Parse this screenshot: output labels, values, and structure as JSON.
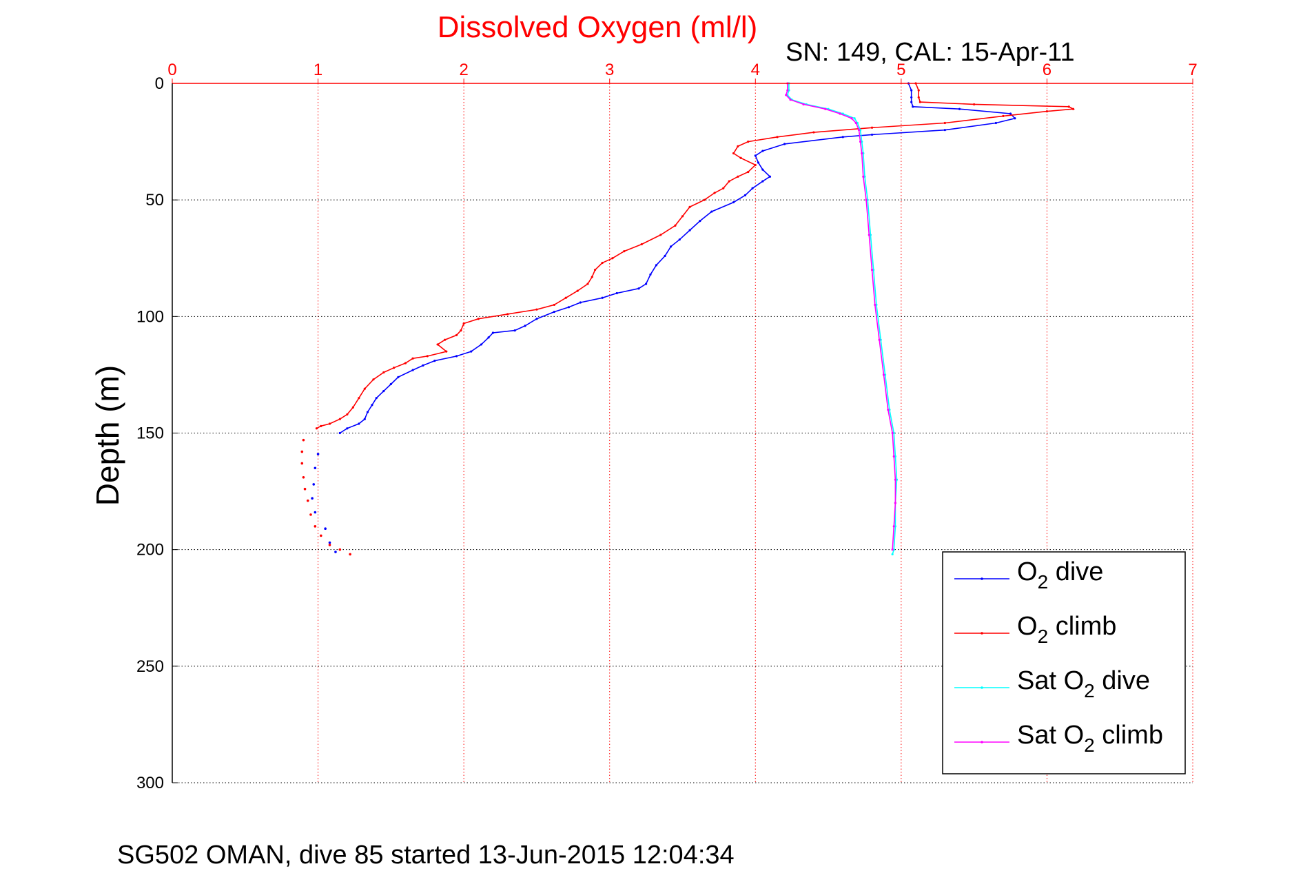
{
  "chart_data": {
    "type": "line",
    "title": "Dissolved Oxygen (ml/l)",
    "subtitle": "SN: 149, CAL: 15-Apr-11",
    "ylabel": "Depth (m)",
    "footer": "SG502 OMAN, dive 85 started 13-Jun-2015 12:04:34",
    "xlim": [
      0,
      7
    ],
    "ylim": [
      0,
      300
    ],
    "y_reversed": true,
    "x_axis_position": "top",
    "grid": true,
    "legend_position": "bottom-right",
    "xticks": [
      "0",
      "1",
      "2",
      "3",
      "4",
      "5",
      "6",
      "7"
    ],
    "yticks": [
      "0",
      "50",
      "100",
      "150",
      "200",
      "250",
      "300"
    ],
    "colors": {
      "title": "#ff0000",
      "x_ticks": "#ff0000",
      "x_grid": "#ff0000",
      "y_grid": "#000000",
      "axis": "#000000"
    },
    "series": [
      {
        "name": "O2 dive",
        "legend": {
          "prefix": "O",
          "sub": "2",
          "suffix": " dive"
        },
        "color": "#0000ff",
        "points": [
          [
            5.05,
            0
          ],
          [
            5.07,
            3
          ],
          [
            5.07,
            6
          ],
          [
            5.07,
            8
          ],
          [
            5.08,
            10
          ],
          [
            5.4,
            11
          ],
          [
            5.75,
            13
          ],
          [
            5.78,
            15
          ],
          [
            5.65,
            17
          ],
          [
            5.3,
            20
          ],
          [
            4.8,
            22
          ],
          [
            4.6,
            23
          ],
          [
            4.2,
            26
          ],
          [
            4.05,
            29
          ],
          [
            4.0,
            31
          ],
          [
            4.02,
            34
          ],
          [
            4.05,
            37
          ],
          [
            4.1,
            40
          ],
          [
            4.05,
            42
          ],
          [
            3.98,
            45
          ],
          [
            3.93,
            48
          ],
          [
            3.85,
            51
          ],
          [
            3.7,
            55
          ],
          [
            3.62,
            59
          ],
          [
            3.55,
            63
          ],
          [
            3.48,
            67
          ],
          [
            3.42,
            70
          ],
          [
            3.38,
            74
          ],
          [
            3.32,
            78
          ],
          [
            3.28,
            82
          ],
          [
            3.25,
            86
          ],
          [
            3.2,
            88
          ],
          [
            3.05,
            90
          ],
          [
            2.95,
            92
          ],
          [
            2.8,
            94
          ],
          [
            2.72,
            96
          ],
          [
            2.62,
            98
          ],
          [
            2.5,
            101
          ],
          [
            2.42,
            104
          ],
          [
            2.35,
            106
          ],
          [
            2.2,
            107
          ],
          [
            2.17,
            109
          ],
          [
            2.12,
            112
          ],
          [
            2.05,
            115
          ],
          [
            1.95,
            117
          ],
          [
            1.8,
            119
          ],
          [
            1.72,
            121
          ],
          [
            1.65,
            123
          ],
          [
            1.55,
            126
          ],
          [
            1.5,
            129
          ],
          [
            1.45,
            132
          ],
          [
            1.4,
            135
          ],
          [
            1.37,
            138
          ],
          [
            1.34,
            141
          ],
          [
            1.32,
            144
          ],
          [
            1.28,
            146
          ],
          [
            1.2,
            148
          ],
          [
            1.15,
            150
          ]
        ]
      },
      {
        "name": "O2 climb",
        "legend": {
          "prefix": "O",
          "sub": "2",
          "suffix": " climb"
        },
        "color": "#ff0000",
        "points": [
          [
            5.1,
            0
          ],
          [
            5.12,
            3
          ],
          [
            5.12,
            6
          ],
          [
            5.13,
            8
          ],
          [
            5.5,
            9
          ],
          [
            6.15,
            10
          ],
          [
            6.18,
            11
          ],
          [
            6.0,
            12
          ],
          [
            5.7,
            14
          ],
          [
            5.3,
            17
          ],
          [
            4.8,
            19
          ],
          [
            4.4,
            21
          ],
          [
            4.15,
            23
          ],
          [
            3.95,
            25
          ],
          [
            3.88,
            27
          ],
          [
            3.85,
            30
          ],
          [
            3.9,
            32
          ],
          [
            4.0,
            35
          ],
          [
            3.95,
            38
          ],
          [
            3.88,
            40
          ],
          [
            3.82,
            42
          ],
          [
            3.78,
            45
          ],
          [
            3.72,
            47
          ],
          [
            3.65,
            50
          ],
          [
            3.55,
            53
          ],
          [
            3.5,
            57
          ],
          [
            3.45,
            61
          ],
          [
            3.35,
            65
          ],
          [
            3.22,
            69
          ],
          [
            3.1,
            72
          ],
          [
            3.02,
            75
          ],
          [
            2.95,
            77
          ],
          [
            2.9,
            80
          ],
          [
            2.88,
            83
          ],
          [
            2.85,
            86
          ],
          [
            2.78,
            89
          ],
          [
            2.7,
            92
          ],
          [
            2.62,
            95
          ],
          [
            2.5,
            97
          ],
          [
            2.3,
            99
          ],
          [
            2.1,
            101
          ],
          [
            2.0,
            103
          ],
          [
            1.98,
            106
          ],
          [
            1.95,
            108
          ],
          [
            1.87,
            110
          ],
          [
            1.82,
            112
          ],
          [
            1.88,
            115
          ],
          [
            1.75,
            117
          ],
          [
            1.65,
            118
          ],
          [
            1.6,
            120
          ],
          [
            1.52,
            122
          ],
          [
            1.45,
            124
          ],
          [
            1.38,
            127
          ],
          [
            1.32,
            131
          ],
          [
            1.28,
            135
          ],
          [
            1.24,
            139
          ],
          [
            1.2,
            142
          ],
          [
            1.15,
            144
          ],
          [
            1.08,
            146
          ],
          [
            1.02,
            147
          ],
          [
            0.99,
            148
          ]
        ]
      },
      {
        "name": "Sat O2 dive",
        "legend": {
          "prefix": "Sat O",
          "sub": "2",
          "suffix": " dive"
        },
        "color": "#00ffff",
        "points": [
          [
            4.23,
            0
          ],
          [
            4.23,
            3
          ],
          [
            4.22,
            5
          ],
          [
            4.25,
            7
          ],
          [
            4.35,
            9
          ],
          [
            4.5,
            11
          ],
          [
            4.6,
            13
          ],
          [
            4.68,
            15
          ],
          [
            4.7,
            17
          ],
          [
            4.72,
            20
          ],
          [
            4.73,
            25
          ],
          [
            4.74,
            30
          ],
          [
            4.75,
            40
          ],
          [
            4.77,
            50
          ],
          [
            4.79,
            65
          ],
          [
            4.81,
            80
          ],
          [
            4.83,
            95
          ],
          [
            4.86,
            110
          ],
          [
            4.89,
            125
          ],
          [
            4.92,
            140
          ],
          [
            4.95,
            150
          ],
          [
            4.96,
            160
          ],
          [
            4.97,
            170
          ],
          [
            4.96,
            180
          ],
          [
            4.96,
            190
          ],
          [
            4.95,
            200
          ],
          [
            4.94,
            202
          ]
        ]
      },
      {
        "name": "Sat O2 climb",
        "legend": {
          "prefix": "Sat O",
          "sub": "2",
          "suffix": " climb"
        },
        "color": "#ff00ff",
        "points": [
          [
            4.22,
            0
          ],
          [
            4.22,
            3
          ],
          [
            4.21,
            5
          ],
          [
            4.24,
            7
          ],
          [
            4.33,
            9
          ],
          [
            4.48,
            11
          ],
          [
            4.58,
            13
          ],
          [
            4.66,
            15
          ],
          [
            4.69,
            17
          ],
          [
            4.71,
            20
          ],
          [
            4.72,
            25
          ],
          [
            4.73,
            30
          ],
          [
            4.74,
            40
          ],
          [
            4.76,
            50
          ],
          [
            4.78,
            65
          ],
          [
            4.8,
            80
          ],
          [
            4.82,
            95
          ],
          [
            4.85,
            110
          ],
          [
            4.88,
            125
          ],
          [
            4.91,
            140
          ],
          [
            4.94,
            150
          ],
          [
            4.95,
            160
          ],
          [
            4.96,
            170
          ],
          [
            4.96,
            180
          ],
          [
            4.95,
            190
          ],
          [
            4.94,
            200
          ]
        ]
      }
    ],
    "scatter_series": [
      {
        "name": "O2 dive",
        "color": "#0000ff",
        "points": [
          [
            1.0,
            159
          ],
          [
            0.98,
            165
          ],
          [
            0.97,
            172
          ],
          [
            0.96,
            178
          ],
          [
            0.98,
            184
          ],
          [
            1.05,
            191
          ],
          [
            1.08,
            197
          ],
          [
            1.12,
            201
          ]
        ]
      },
      {
        "name": "O2 climb",
        "color": "#ff0000",
        "points": [
          [
            0.9,
            153
          ],
          [
            0.89,
            158
          ],
          [
            0.89,
            163
          ],
          [
            0.9,
            169
          ],
          [
            0.91,
            174
          ],
          [
            0.93,
            179
          ],
          [
            0.95,
            185
          ],
          [
            0.98,
            190
          ],
          [
            1.02,
            194
          ],
          [
            1.08,
            198
          ],
          [
            1.15,
            200
          ],
          [
            1.22,
            202
          ]
        ]
      }
    ]
  }
}
